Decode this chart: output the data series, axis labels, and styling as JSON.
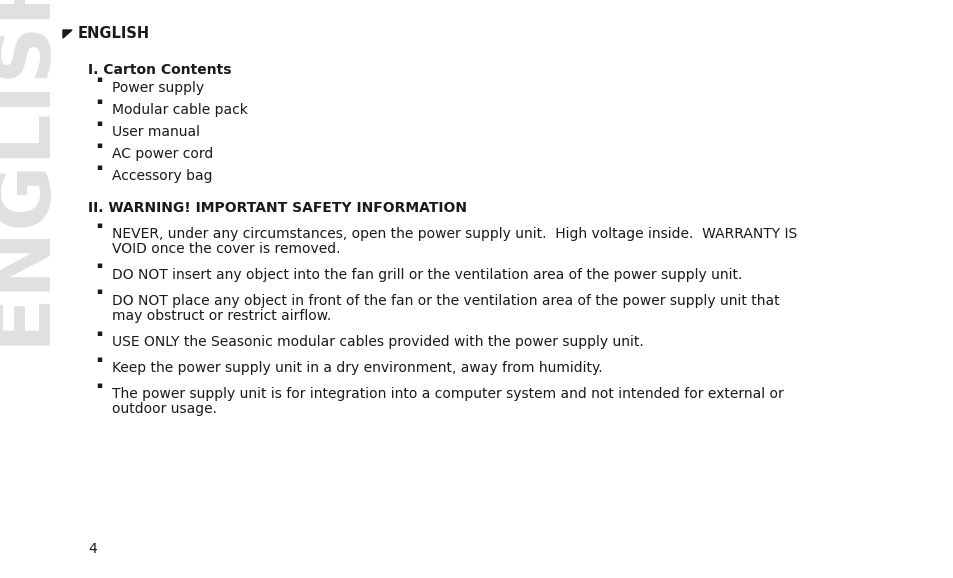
{
  "bg_color": "#ffffff",
  "watermark_text": "ENGLISH",
  "watermark_color": "#e0e0e0",
  "arrow_color": "#1a1a1a",
  "header_text": "ENGLISH",
  "section1_title": "I. Carton Contents",
  "section1_items": [
    "Power supply",
    "Modular cable pack",
    "User manual",
    "AC power cord",
    "Accessory bag"
  ],
  "section2_title": "II. WARNING! IMPORTANT SAFETY INFORMATION",
  "section2_items": [
    "NEVER, under any circumstances, open the power supply unit.  High voltage inside.  WARRANTY IS\nVOID once the cover is removed.",
    "DO NOT insert any object into the fan grill or the ventilation area of the power supply unit.",
    "DO NOT place any object in front of the fan or the ventilation area of the power supply unit that\nmay obstruct or restrict airflow.",
    "USE ONLY the Seasonic modular cables provided with the power supply unit.",
    "Keep the power supply unit in a dry environment, away from humidity.",
    "The power supply unit is for integration into a computer system and not intended for external or\noutdoor usage."
  ],
  "page_number": "4",
  "text_color": "#1a1a1a",
  "bullet_char": "▪"
}
